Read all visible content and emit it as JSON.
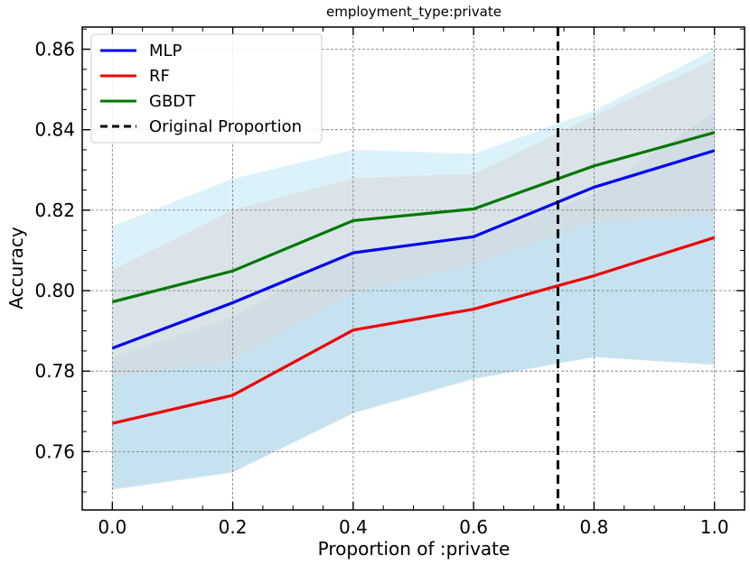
{
  "chart_data": {
    "type": "line",
    "title": "employment_type:private",
    "xlabel": "Proportion of :private",
    "ylabel": "Accuracy",
    "xlim": [
      -0.05,
      1.05
    ],
    "ylim": [
      0.7455,
      0.8655
    ],
    "x_ticks": [
      0.0,
      0.2,
      0.4,
      0.6,
      0.8,
      1.0
    ],
    "x_tick_labels": [
      "0.0",
      "0.2",
      "0.4",
      "0.6",
      "0.8",
      "1.0"
    ],
    "y_ticks": [
      0.76,
      0.78,
      0.8,
      0.82,
      0.84,
      0.86
    ],
    "y_tick_labels": [
      "0.76",
      "0.78",
      "0.80",
      "0.82",
      "0.84",
      "0.86"
    ],
    "grid": true,
    "legend_position": "top-left",
    "x": [
      0.0,
      0.2,
      0.4,
      0.6,
      0.8,
      1.0
    ],
    "series": [
      {
        "name": "MLP",
        "color": "#0000ee",
        "band_color": "#bfe8f8",
        "values": [
          0.7857,
          0.797,
          0.8094,
          0.8134,
          0.8257,
          0.8348
        ],
        "lower": [
          0.7508,
          0.755,
          0.7697,
          0.7783,
          0.7835,
          0.7818
        ],
        "upper": [
          0.816,
          0.8278,
          0.835,
          0.834,
          0.8447,
          0.86
        ]
      },
      {
        "name": "RF",
        "color": "#ee0000",
        "band_color": "#b4d6ea",
        "values": [
          0.767,
          0.774,
          0.7902,
          0.7954,
          0.8037,
          0.8132
        ],
        "lower": [
          0.7505,
          0.7548,
          0.7695,
          0.778,
          0.7835,
          0.7815
        ],
        "upper": [
          0.7835,
          0.7935,
          0.81,
          0.813,
          0.824,
          0.8445
        ]
      },
      {
        "name": "GBDT",
        "color": "#007700",
        "band_color": "#d8d8d8",
        "values": [
          0.7972,
          0.8049,
          0.8174,
          0.8203,
          0.831,
          0.8393
        ],
        "lower": [
          0.7785,
          0.7825,
          0.7995,
          0.8065,
          0.817,
          0.819
        ],
        "upper": [
          0.8052,
          0.82,
          0.828,
          0.829,
          0.8435,
          0.8575
        ]
      }
    ],
    "vertical_line": {
      "name": "Original Proportion",
      "x": 0.74,
      "style": "dashed",
      "color": "#000000"
    }
  }
}
